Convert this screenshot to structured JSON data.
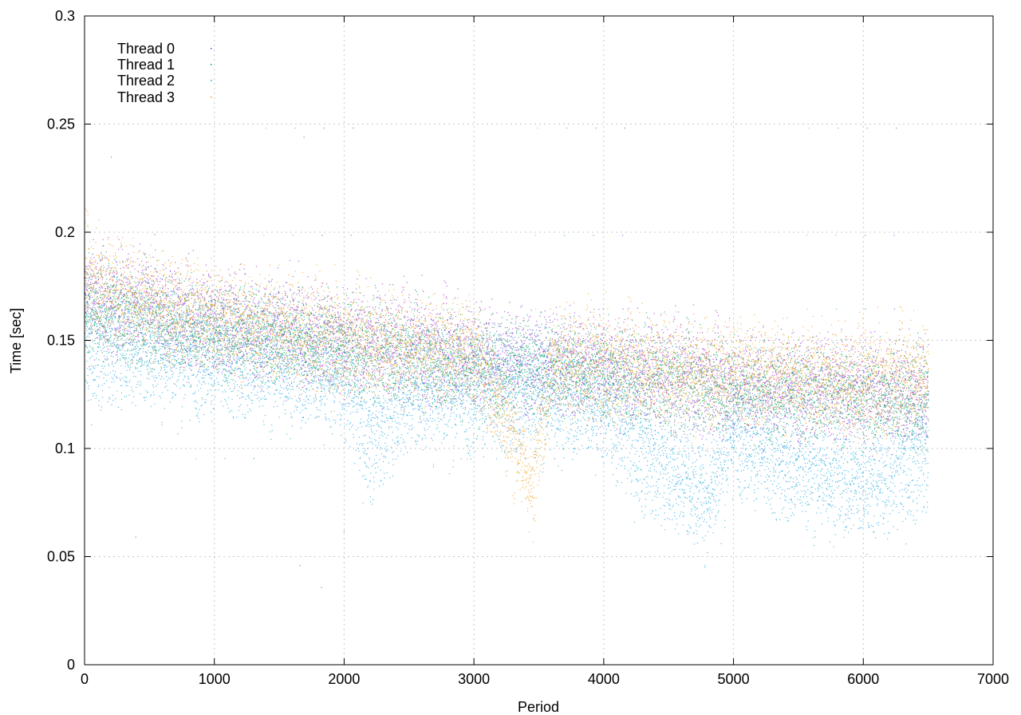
{
  "chart_data": {
    "type": "scatter",
    "title": "",
    "xlabel": "Period",
    "ylabel": "Time [sec]",
    "xlim": [
      0,
      7000
    ],
    "ylim": [
      0,
      0.3
    ],
    "xticks": [
      0,
      1000,
      2000,
      3000,
      4000,
      5000,
      6000,
      7000
    ],
    "yticks": [
      0,
      0.05,
      0.1,
      0.15,
      0.2,
      0.25,
      0.3
    ],
    "xtick_labels": [
      "0",
      "1000",
      "2000",
      "3000",
      "4000",
      "5000",
      "6000",
      "7000"
    ],
    "ytick_labels": [
      "0",
      "0.05",
      "0.1",
      "0.15",
      "0.2",
      "0.25",
      "0.3"
    ],
    "grid": true,
    "legend_position": "top-left",
    "point_count_per_series": 6500,
    "series": [
      {
        "name": "Thread 0",
        "color": "#9b30d8",
        "trend": [
          [
            0,
            0.17
          ],
          [
            500,
            0.165
          ],
          [
            1000,
            0.158
          ],
          [
            2000,
            0.15
          ],
          [
            3000,
            0.143
          ],
          [
            4000,
            0.137
          ],
          [
            5000,
            0.13
          ],
          [
            6000,
            0.127
          ],
          [
            6500,
            0.125
          ]
        ],
        "spread": 0.012
      },
      {
        "name": "Thread 1",
        "color": "#00a060",
        "trend": [
          [
            0,
            0.165
          ],
          [
            500,
            0.16
          ],
          [
            1000,
            0.155
          ],
          [
            2000,
            0.147
          ],
          [
            3000,
            0.14
          ],
          [
            4000,
            0.135
          ],
          [
            5000,
            0.128
          ],
          [
            6000,
            0.125
          ],
          [
            6500,
            0.123
          ]
        ],
        "spread": 0.011
      },
      {
        "name": "Thread 2",
        "color": "#20a8e0",
        "trend": [
          [
            0,
            0.15
          ],
          [
            500,
            0.148
          ],
          [
            1000,
            0.143
          ],
          [
            2000,
            0.135
          ],
          [
            2200,
            0.105
          ],
          [
            2500,
            0.128
          ],
          [
            3000,
            0.127
          ],
          [
            4000,
            0.122
          ],
          [
            4300,
            0.1
          ],
          [
            4800,
            0.08
          ],
          [
            5000,
            0.11
          ],
          [
            5300,
            0.095
          ],
          [
            6000,
            0.085
          ],
          [
            6500,
            0.1
          ]
        ],
        "spread": 0.014
      },
      {
        "name": "Thread 3",
        "color": "#f0a020",
        "trend": [
          [
            0,
            0.178
          ],
          [
            500,
            0.168
          ],
          [
            1000,
            0.16
          ],
          [
            2000,
            0.15
          ],
          [
            3000,
            0.145
          ],
          [
            3450,
            0.085
          ],
          [
            3600,
            0.14
          ],
          [
            4000,
            0.138
          ],
          [
            5000,
            0.135
          ],
          [
            6000,
            0.13
          ],
          [
            6500,
            0.135
          ]
        ],
        "spread": 0.012
      }
    ]
  }
}
